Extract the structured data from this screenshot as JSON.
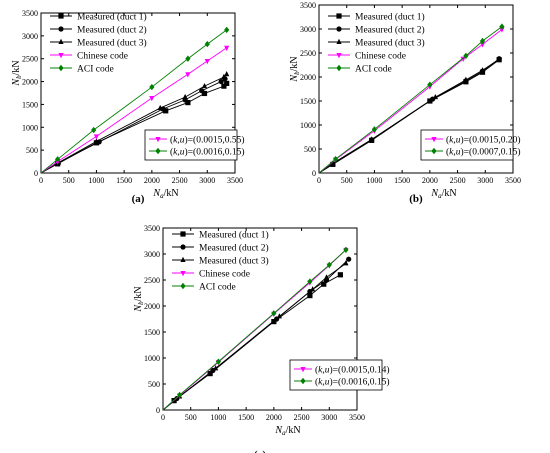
{
  "chart_data": [
    {
      "panel": "(a)",
      "type": "line",
      "xlabel": "N_a/kN",
      "ylabel": "N_b/kN",
      "xlim": [
        0,
        3500
      ],
      "ylim": [
        0,
        3500
      ],
      "xticks": [
        0,
        500,
        1000,
        1500,
        2000,
        2500,
        3000,
        3500
      ],
      "yticks": [
        0,
        500,
        1000,
        1500,
        2000,
        2500,
        3000,
        3500
      ],
      "legend": [
        "Measured (duct 1)",
        "Measured (duct 2)",
        "Measured (duct 3)",
        "Chinese code",
        "ACI code"
      ],
      "params": [
        "(k,u)=(0.0015,0.55)",
        "(k,u)=(0.0016,0.15)"
      ],
      "series": [
        {
          "name": "Measured (duct 1)",
          "marker": "square",
          "color": "#000000",
          "x": [
            0,
            300,
            1000,
            2250,
            2650,
            2950,
            3300,
            3350
          ],
          "y": [
            0,
            200,
            660,
            1360,
            1540,
            1740,
            1900,
            1960
          ]
        },
        {
          "name": "Measured (duct 2)",
          "marker": "circle",
          "color": "#000000",
          "x": [
            0,
            300,
            1050,
            2200,
            2600,
            2900,
            3250,
            3320
          ],
          "y": [
            0,
            220,
            680,
            1400,
            1600,
            1800,
            2000,
            2060
          ]
        },
        {
          "name": "Measured (duct 3)",
          "marker": "triangle",
          "color": "#000000",
          "x": [
            0,
            320,
            1000,
            2150,
            2600,
            2950,
            3300,
            3350
          ],
          "y": [
            0,
            230,
            690,
            1420,
            1660,
            1900,
            2100,
            2160
          ]
        },
        {
          "name": "Chinese code",
          "marker": "triangle-down",
          "color": "#ff00ff",
          "x": [
            0,
            300,
            1000,
            2000,
            2650,
            3000,
            3350
          ],
          "y": [
            0,
            250,
            800,
            1640,
            2160,
            2450,
            2740
          ]
        },
        {
          "name": "ACI code",
          "marker": "diamond",
          "color": "#008000",
          "x": [
            0,
            300,
            950,
            2000,
            2650,
            3000,
            3350
          ],
          "y": [
            0,
            300,
            940,
            1880,
            2500,
            2820,
            3130
          ]
        }
      ]
    },
    {
      "panel": "(b)",
      "type": "line",
      "xlabel": "N_a/kN",
      "ylabel": "N_b/kN",
      "xlim": [
        0,
        3500
      ],
      "ylim": [
        0,
        3500
      ],
      "xticks": [
        0,
        500,
        1000,
        1500,
        2000,
        2500,
        3000,
        3500
      ],
      "yticks": [
        0,
        500,
        1000,
        1500,
        2000,
        2500,
        3000,
        3500
      ],
      "legend": [
        "Measured (duct 1)",
        "Measured (duct 2)",
        "Measured (duct 3)",
        "Chinese code",
        "ACI code"
      ],
      "params": [
        "(k,u)=(0.0015,0.20)",
        "(k,u)=(0.0007,0.15)"
      ],
      "series": [
        {
          "name": "Measured (duct 1)",
          "marker": "square",
          "color": "#000000",
          "x": [
            0,
            250,
            950,
            2000,
            2650,
            2950,
            3250
          ],
          "y": [
            0,
            180,
            680,
            1500,
            1900,
            2100,
            2360
          ]
        },
        {
          "name": "Measured (duct 2)",
          "marker": "circle",
          "color": "#000000",
          "x": [
            0,
            250,
            950,
            2050,
            2650,
            2950,
            3250
          ],
          "y": [
            0,
            190,
            690,
            1540,
            1920,
            2120,
            2380
          ]
        },
        {
          "name": "Measured (duct 3)",
          "marker": "triangle",
          "color": "#000000",
          "x": [
            0,
            250,
            950,
            2100,
            2650,
            2950,
            3250
          ],
          "y": [
            0,
            200,
            700,
            1580,
            1940,
            2140,
            2370
          ]
        },
        {
          "name": "Chinese code",
          "marker": "triangle-down",
          "color": "#ff00ff",
          "x": [
            0,
            300,
            1000,
            2000,
            2600,
            2950,
            3300
          ],
          "y": [
            0,
            280,
            880,
            1800,
            2380,
            2680,
            2990
          ]
        },
        {
          "name": "ACI code",
          "marker": "diamond",
          "color": "#008000",
          "x": [
            0,
            300,
            1000,
            2000,
            2650,
            2950,
            3300
          ],
          "y": [
            0,
            290,
            910,
            1840,
            2440,
            2750,
            3050
          ]
        }
      ]
    },
    {
      "panel": "(c)",
      "type": "line",
      "xlabel": "N_a/kN",
      "ylabel": "N_b/kN",
      "xlim": [
        0,
        3500
      ],
      "ylim": [
        0,
        3500
      ],
      "xticks": [
        0,
        500,
        1000,
        1500,
        2000,
        2500,
        3000,
        3500
      ],
      "yticks": [
        0,
        500,
        1000,
        1500,
        2000,
        2500,
        3000,
        3500
      ],
      "legend": [
        "Measured (duct 1)",
        "Measured (duct 2)",
        "Measured (duct 3)",
        "Chinese code",
        "ACI code"
      ],
      "params": [
        "(k,u)=(0.0015,0.14)",
        "(k,u)=(0.0016,0.15)"
      ],
      "series": [
        {
          "name": "Measured (duct 1)",
          "marker": "square",
          "color": "#000000",
          "x": [
            0,
            200,
            850,
            2000,
            2650,
            2900,
            3200
          ],
          "y": [
            0,
            180,
            700,
            1700,
            2200,
            2420,
            2600
          ]
        },
        {
          "name": "Measured (duct 2)",
          "marker": "circle",
          "color": "#000000",
          "x": [
            0,
            250,
            900,
            2050,
            2650,
            2950,
            3350
          ],
          "y": [
            0,
            220,
            760,
            1750,
            2280,
            2500,
            2900
          ]
        },
        {
          "name": "Measured (duct 3)",
          "marker": "triangle",
          "color": "#000000",
          "x": [
            0,
            300,
            950,
            2100,
            2700,
            2950,
            3300
          ],
          "y": [
            0,
            260,
            800,
            1800,
            2320,
            2550,
            2820
          ]
        },
        {
          "name": "Chinese code",
          "marker": "triangle-down",
          "color": "#ff00ff",
          "x": [
            0,
            300,
            1000,
            2000,
            2650,
            3000,
            3300
          ],
          "y": [
            0,
            280,
            920,
            1850,
            2450,
            2780,
            3080
          ]
        },
        {
          "name": "ACI code",
          "marker": "diamond",
          "color": "#008000",
          "x": [
            0,
            300,
            1000,
            2000,
            2650,
            3000,
            3300
          ],
          "y": [
            0,
            290,
            930,
            1860,
            2470,
            2790,
            3080
          ]
        }
      ]
    }
  ]
}
